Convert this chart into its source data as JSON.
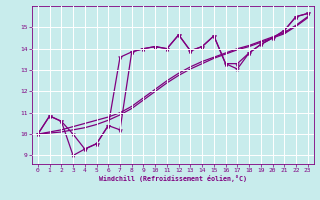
{
  "xlabel": "Windchill (Refroidissement éolien,°C)",
  "bg_color": "#c8ecec",
  "line_color": "#800080",
  "grid_color": "#ffffff",
  "xlim": [
    -0.5,
    23.5
  ],
  "ylim": [
    8.6,
    16.0
  ],
  "yticks": [
    9,
    10,
    11,
    12,
    13,
    14,
    15
  ],
  "xticks": [
    0,
    1,
    2,
    3,
    4,
    5,
    6,
    7,
    8,
    9,
    10,
    11,
    12,
    13,
    14,
    15,
    16,
    17,
    18,
    19,
    20,
    21,
    22,
    23
  ],
  "line1_x": [
    0,
    1,
    2,
    3,
    4,
    5,
    6,
    7,
    8,
    9,
    10,
    11,
    12,
    13,
    14,
    15,
    16,
    17,
    18,
    19,
    20,
    21,
    22,
    23
  ],
  "line1_y": [
    10.0,
    10.85,
    10.6,
    9.0,
    9.3,
    9.55,
    10.4,
    10.2,
    13.85,
    14.0,
    14.1,
    14.0,
    14.65,
    13.9,
    14.1,
    14.6,
    13.3,
    13.05,
    13.8,
    14.2,
    14.5,
    14.85,
    15.5,
    15.65
  ],
  "line2_x": [
    0,
    1,
    2,
    3,
    4,
    5,
    6,
    7,
    8,
    9,
    10,
    11,
    12,
    13,
    14,
    15,
    16,
    17,
    18,
    19,
    20,
    21,
    22,
    23
  ],
  "line2_y": [
    10.0,
    10.85,
    10.6,
    10.0,
    9.3,
    9.55,
    10.4,
    13.6,
    13.85,
    14.0,
    14.1,
    14.0,
    14.65,
    13.9,
    14.1,
    14.6,
    13.3,
    13.3,
    13.8,
    14.2,
    14.5,
    14.85,
    15.5,
    15.65
  ],
  "line3_x": [
    0,
    1,
    2,
    3,
    4,
    5,
    6,
    7,
    8,
    9,
    10,
    11,
    12,
    13,
    14,
    15,
    16,
    17,
    18,
    19,
    20,
    21,
    22,
    23
  ],
  "line3_y": [
    10.0,
    10.1,
    10.2,
    10.35,
    10.5,
    10.65,
    10.8,
    11.0,
    11.3,
    11.7,
    12.1,
    12.5,
    12.85,
    13.15,
    13.4,
    13.6,
    13.8,
    14.0,
    14.15,
    14.35,
    14.55,
    14.75,
    15.1,
    15.5
  ],
  "line4_x": [
    0,
    1,
    2,
    3,
    4,
    5,
    6,
    7,
    8,
    9,
    10,
    11,
    12,
    13,
    14,
    15,
    16,
    17,
    18,
    19,
    20,
    21,
    22,
    23
  ],
  "line4_y": [
    10.0,
    10.05,
    10.1,
    10.2,
    10.3,
    10.45,
    10.65,
    10.9,
    11.2,
    11.6,
    12.0,
    12.4,
    12.75,
    13.05,
    13.3,
    13.55,
    13.75,
    13.95,
    14.1,
    14.3,
    14.5,
    14.7,
    15.05,
    15.45
  ]
}
